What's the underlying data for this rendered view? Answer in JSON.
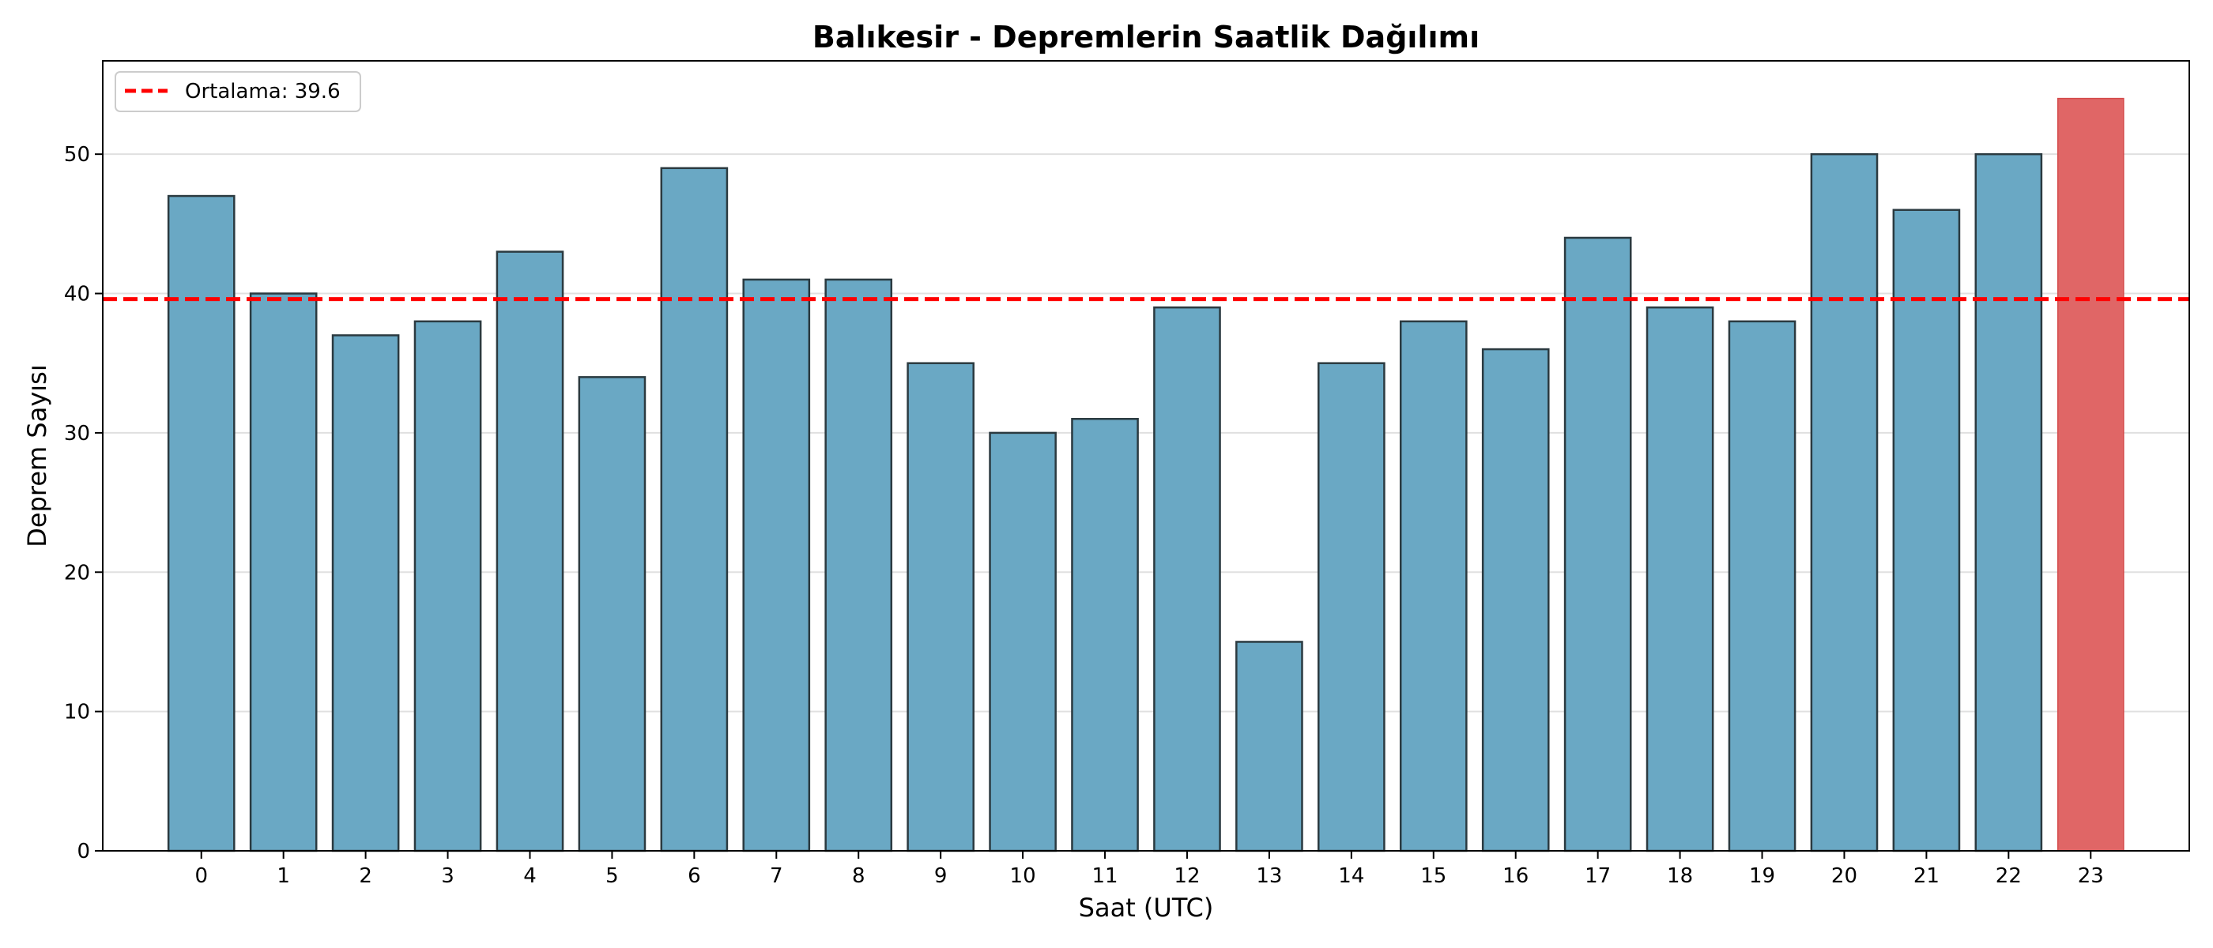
{
  "chart_data": {
    "type": "bar",
    "title": "Balıkesir - Depremlerin Saatlik Dağılımı",
    "xlabel": "Saat (UTC)",
    "ylabel": "Deprem Sayısı",
    "categories": [
      "0",
      "1",
      "2",
      "3",
      "4",
      "5",
      "6",
      "7",
      "8",
      "9",
      "10",
      "11",
      "12",
      "13",
      "14",
      "15",
      "16",
      "17",
      "18",
      "19",
      "20",
      "21",
      "22",
      "23"
    ],
    "values": [
      47,
      40,
      37,
      38,
      43,
      34,
      49,
      41,
      41,
      35,
      30,
      31,
      39,
      15,
      35,
      38,
      36,
      44,
      39,
      38,
      50,
      46,
      50,
      54
    ],
    "ylim": [
      0,
      56.7
    ],
    "yticks": [
      0,
      10,
      20,
      30,
      40,
      50
    ],
    "bar_color": "#6aa8c4",
    "highlight_index": 23,
    "highlight_color": "#e06666",
    "mean": {
      "value": 39.6,
      "label": "Ortalama: 39.6",
      "color": "#ff0000"
    },
    "grid": "y",
    "legend_position": "top-left"
  }
}
